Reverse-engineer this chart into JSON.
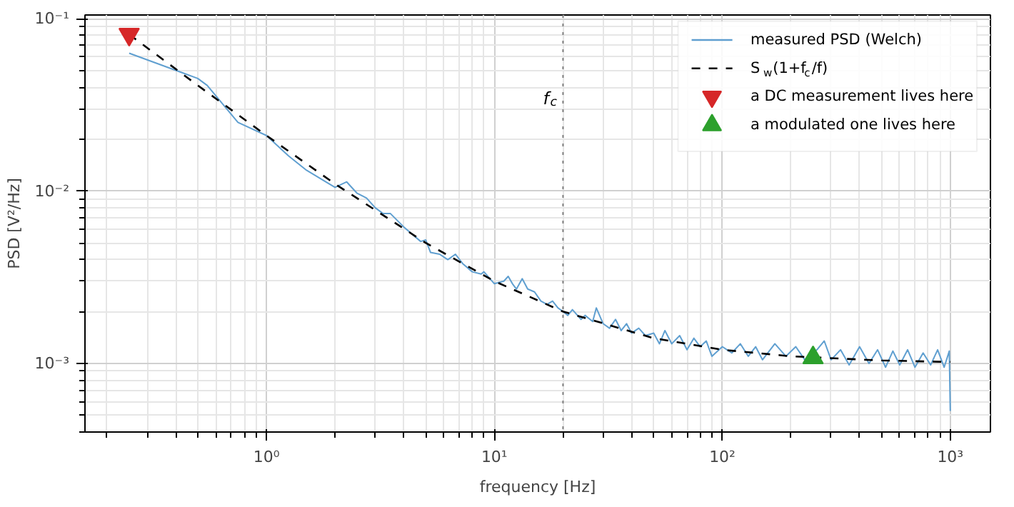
{
  "chart_data": {
    "type": "line",
    "xlabel": "frequency [Hz]",
    "ylabel": "PSD [V²/Hz]",
    "log": "xy",
    "grid": true,
    "legend": "top right",
    "xlim": [
      0.16,
      1500
    ],
    "ylim": [
      0.0004,
      0.105
    ],
    "xticks": [
      {
        "value": 1,
        "label": "10⁰"
      },
      {
        "value": 10,
        "label": "10¹"
      },
      {
        "value": 100,
        "label": "10²"
      },
      {
        "value": 1000,
        "label": "10³"
      }
    ],
    "yticks": [
      {
        "value": 0.001,
        "label": "10⁻³"
      },
      {
        "value": 0.01,
        "label": "10⁻²"
      },
      {
        "value": 0.1,
        "label": "10⁻¹"
      }
    ],
    "ref_lines": [
      {
        "axis": "x",
        "value": 20,
        "label": "f$_{c}$",
        "color": "#808080",
        "line_style": "dotted"
      }
    ],
    "series": [
      {
        "name": "measured PSD (Welch)",
        "color": "#5f9fd0",
        "line_style": "solid",
        "x": [
          0.25,
          0.5,
          0.55,
          0.75,
          1.0,
          1.25,
          1.5,
          2.0,
          2.25,
          2.5,
          2.75,
          3.0,
          3.25,
          3.5,
          4.0,
          4.75,
          5.0,
          5.25,
          5.75,
          6.25,
          6.75,
          7.25,
          8.0,
          8.75,
          9.0,
          10,
          11,
          11.5,
          12,
          12.5,
          13.25,
          14,
          15,
          16,
          17,
          18,
          19,
          20,
          21,
          22,
          24,
          25,
          27,
          28,
          30,
          32,
          34,
          36,
          38,
          40,
          43,
          46,
          50,
          53,
          56,
          60,
          65,
          70,
          75,
          80,
          85,
          90,
          100,
          110,
          120,
          130,
          140,
          150,
          170,
          190,
          210,
          230,
          260,
          280,
          300,
          330,
          360,
          400,
          440,
          480,
          520,
          560,
          600,
          650,
          700,
          760,
          820,
          880,
          940,
          990,
          1000
        ],
        "values": [
          0.063,
          0.045,
          0.041,
          0.025,
          0.021,
          0.016,
          0.0132,
          0.0105,
          0.0113,
          0.0097,
          0.0091,
          0.008,
          0.0074,
          0.0074,
          0.0062,
          0.0051,
          0.0052,
          0.0044,
          0.0043,
          0.004,
          0.0043,
          0.0038,
          0.0034,
          0.0033,
          0.0034,
          0.0029,
          0.003,
          0.0032,
          0.0029,
          0.0027,
          0.0031,
          0.0027,
          0.0026,
          0.0023,
          0.0022,
          0.0023,
          0.0021,
          0.002,
          0.0019,
          0.00205,
          0.0018,
          0.0019,
          0.00175,
          0.0021,
          0.0017,
          0.0016,
          0.0018,
          0.00155,
          0.0017,
          0.0015,
          0.0016,
          0.00145,
          0.0015,
          0.0013,
          0.00155,
          0.0013,
          0.00145,
          0.0012,
          0.0014,
          0.00125,
          0.00135,
          0.0011,
          0.00125,
          0.00115,
          0.0013,
          0.0011,
          0.00125,
          0.00105,
          0.0013,
          0.0011,
          0.00125,
          0.00105,
          0.0012,
          0.00135,
          0.00105,
          0.0012,
          0.00098,
          0.00125,
          0.001,
          0.0012,
          0.00095,
          0.00118,
          0.00098,
          0.0012,
          0.00095,
          0.00115,
          0.00098,
          0.0012,
          0.00095,
          0.00118,
          0.00053
        ]
      },
      {
        "name": "S$_{w}$(1+f$_{c}$/f)",
        "color": "#000000",
        "line_style": "dashed",
        "x": [
          0.25,
          0.5,
          1,
          2,
          5,
          10,
          20,
          50,
          100,
          200,
          500,
          1000
        ],
        "values": [
          0.081,
          0.041,
          0.021,
          0.011,
          0.005,
          0.003,
          0.002,
          0.0014,
          0.0012,
          0.0011,
          0.00104,
          0.00102
        ]
      },
      {
        "name": "a DC measurement lives here",
        "type": "scatter",
        "color": "#d62728",
        "x": [
          0.25
        ],
        "values": [
          0.081
        ]
      },
      {
        "name": "a modulated one lives here",
        "type": "scatter",
        "marker": "triangle",
        "color": "#2ca02c",
        "x": [
          250
        ],
        "values": [
          0.00108
        ]
      }
    ]
  }
}
